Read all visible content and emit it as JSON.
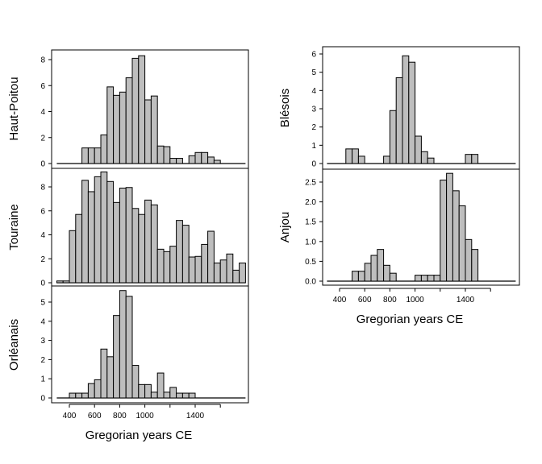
{
  "chart_data": [
    {
      "type": "bar",
      "panel": "Haut-Poitou",
      "ylabel": "Haut-Poitou",
      "bin_width": 50,
      "xlim": [
        300,
        1800
      ],
      "yticks": [
        "0",
        "2",
        "4",
        "6",
        "8"
      ],
      "ytick_values": [
        0,
        2,
        4,
        6,
        8
      ],
      "x": [
        500,
        550,
        600,
        650,
        700,
        750,
        800,
        850,
        900,
        950,
        1000,
        1050,
        1100,
        1150,
        1200,
        1250,
        1300,
        1350,
        1400,
        1450,
        1500,
        1550
      ],
      "values": [
        1.2,
        1.2,
        1.2,
        2.2,
        5.9,
        5.25,
        5.5,
        6.6,
        8.1,
        8.3,
        4.9,
        5.2,
        1.35,
        1.3,
        0.4,
        0.4,
        0,
        0.6,
        0.85,
        0.85,
        0.5,
        0.25
      ]
    },
    {
      "type": "bar",
      "panel": "Touraine",
      "ylabel": "Touraine",
      "bin_width": 50,
      "xlim": [
        300,
        1800
      ],
      "yticks": [
        "0",
        "2",
        "4",
        "6",
        "8"
      ],
      "ytick_values": [
        0,
        2,
        4,
        6,
        8
      ],
      "x": [
        300,
        350,
        400,
        450,
        500,
        550,
        600,
        650,
        700,
        750,
        800,
        850,
        900,
        950,
        1000,
        1050,
        1100,
        1150,
        1200,
        1250,
        1300,
        1350,
        1400,
        1450,
        1500,
        1550,
        1600,
        1650,
        1700,
        1750
      ],
      "values": [
        0.15,
        0.15,
        4.35,
        5.7,
        8.55,
        7.6,
        8.85,
        9.25,
        8.45,
        6.7,
        7.9,
        7.95,
        6.2,
        5.7,
        6.9,
        6.5,
        2.8,
        2.6,
        3.05,
        5.2,
        4.8,
        2.15,
        2.2,
        3.2,
        4.3,
        1.65,
        1.9,
        2.4,
        1.05,
        1.65
      ]
    },
    {
      "type": "bar",
      "panel": "Orléanais",
      "ylabel": "Orléanais",
      "xlabel": "Gregorian years CE",
      "bin_width": 50,
      "xlim": [
        300,
        1800
      ],
      "yticks": [
        "0",
        "1",
        "2",
        "3",
        "4",
        "5"
      ],
      "ytick_values": [
        0,
        1,
        2,
        3,
        4,
        5
      ],
      "xticks": [
        "400",
        "600",
        "800",
        "1000",
        "",
        "1400",
        ""
      ],
      "xtick_values": [
        400,
        600,
        800,
        1000,
        1200,
        1400,
        1600
      ],
      "x": [
        400,
        450,
        500,
        550,
        600,
        650,
        700,
        750,
        800,
        850,
        900,
        950,
        1000,
        1050,
        1100,
        1150,
        1200,
        1250,
        1300,
        1350
      ],
      "values": [
        0.25,
        0.25,
        0.25,
        0.75,
        0.95,
        2.55,
        2.15,
        4.3,
        5.6,
        5.3,
        1.7,
        0.7,
        0.7,
        0.3,
        1.3,
        0.3,
        0.55,
        0.25,
        0.25,
        0.25
      ]
    },
    {
      "type": "bar",
      "panel": "Blésois",
      "ylabel": "Blésois",
      "bin_width": 50,
      "xlim": [
        300,
        1800
      ],
      "yticks": [
        "0",
        "1",
        "2",
        "3",
        "4",
        "5",
        "6"
      ],
      "ytick_values": [
        0,
        1,
        2,
        3,
        4,
        5,
        6
      ],
      "x": [
        450,
        500,
        550,
        600,
        650,
        700,
        750,
        800,
        850,
        900,
        950,
        1000,
        1050,
        1100,
        1150,
        1200,
        1250,
        1300,
        1350,
        1400,
        1450
      ],
      "values": [
        0.8,
        0.8,
        0.4,
        0,
        0,
        0,
        0.4,
        2.9,
        4.7,
        5.9,
        5.55,
        1.5,
        0.65,
        0.3,
        0,
        0,
        0,
        0,
        0,
        0.5,
        0.5
      ]
    },
    {
      "type": "bar",
      "panel": "Anjou",
      "ylabel": "Anjou",
      "xlabel": "Gregorian years CE",
      "bin_width": 50,
      "xlim": [
        300,
        1800
      ],
      "yticks": [
        "0.0",
        "0.5",
        "1.0",
        "1.5",
        "2.0",
        "2.5"
      ],
      "ytick_values": [
        0,
        0.5,
        1,
        1.5,
        2,
        2.5
      ],
      "xticks": [
        "400",
        "600",
        "800",
        "1000",
        "",
        "1400",
        ""
      ],
      "xtick_values": [
        400,
        600,
        800,
        1000,
        1200,
        1400,
        1600
      ],
      "x": [
        500,
        550,
        600,
        650,
        700,
        750,
        800,
        850,
        900,
        950,
        1000,
        1050,
        1100,
        1150,
        1200,
        1250,
        1300,
        1350,
        1400,
        1450
      ],
      "values": [
        0.25,
        0.25,
        0.45,
        0.65,
        0.8,
        0.4,
        0.2,
        0,
        0,
        0,
        0.15,
        0.15,
        0.15,
        0.15,
        2.55,
        2.72,
        2.28,
        1.9,
        1.05,
        0.8
      ]
    }
  ],
  "colors": {
    "bar_fill": "#bebebe",
    "bar_stroke": "#000000"
  }
}
